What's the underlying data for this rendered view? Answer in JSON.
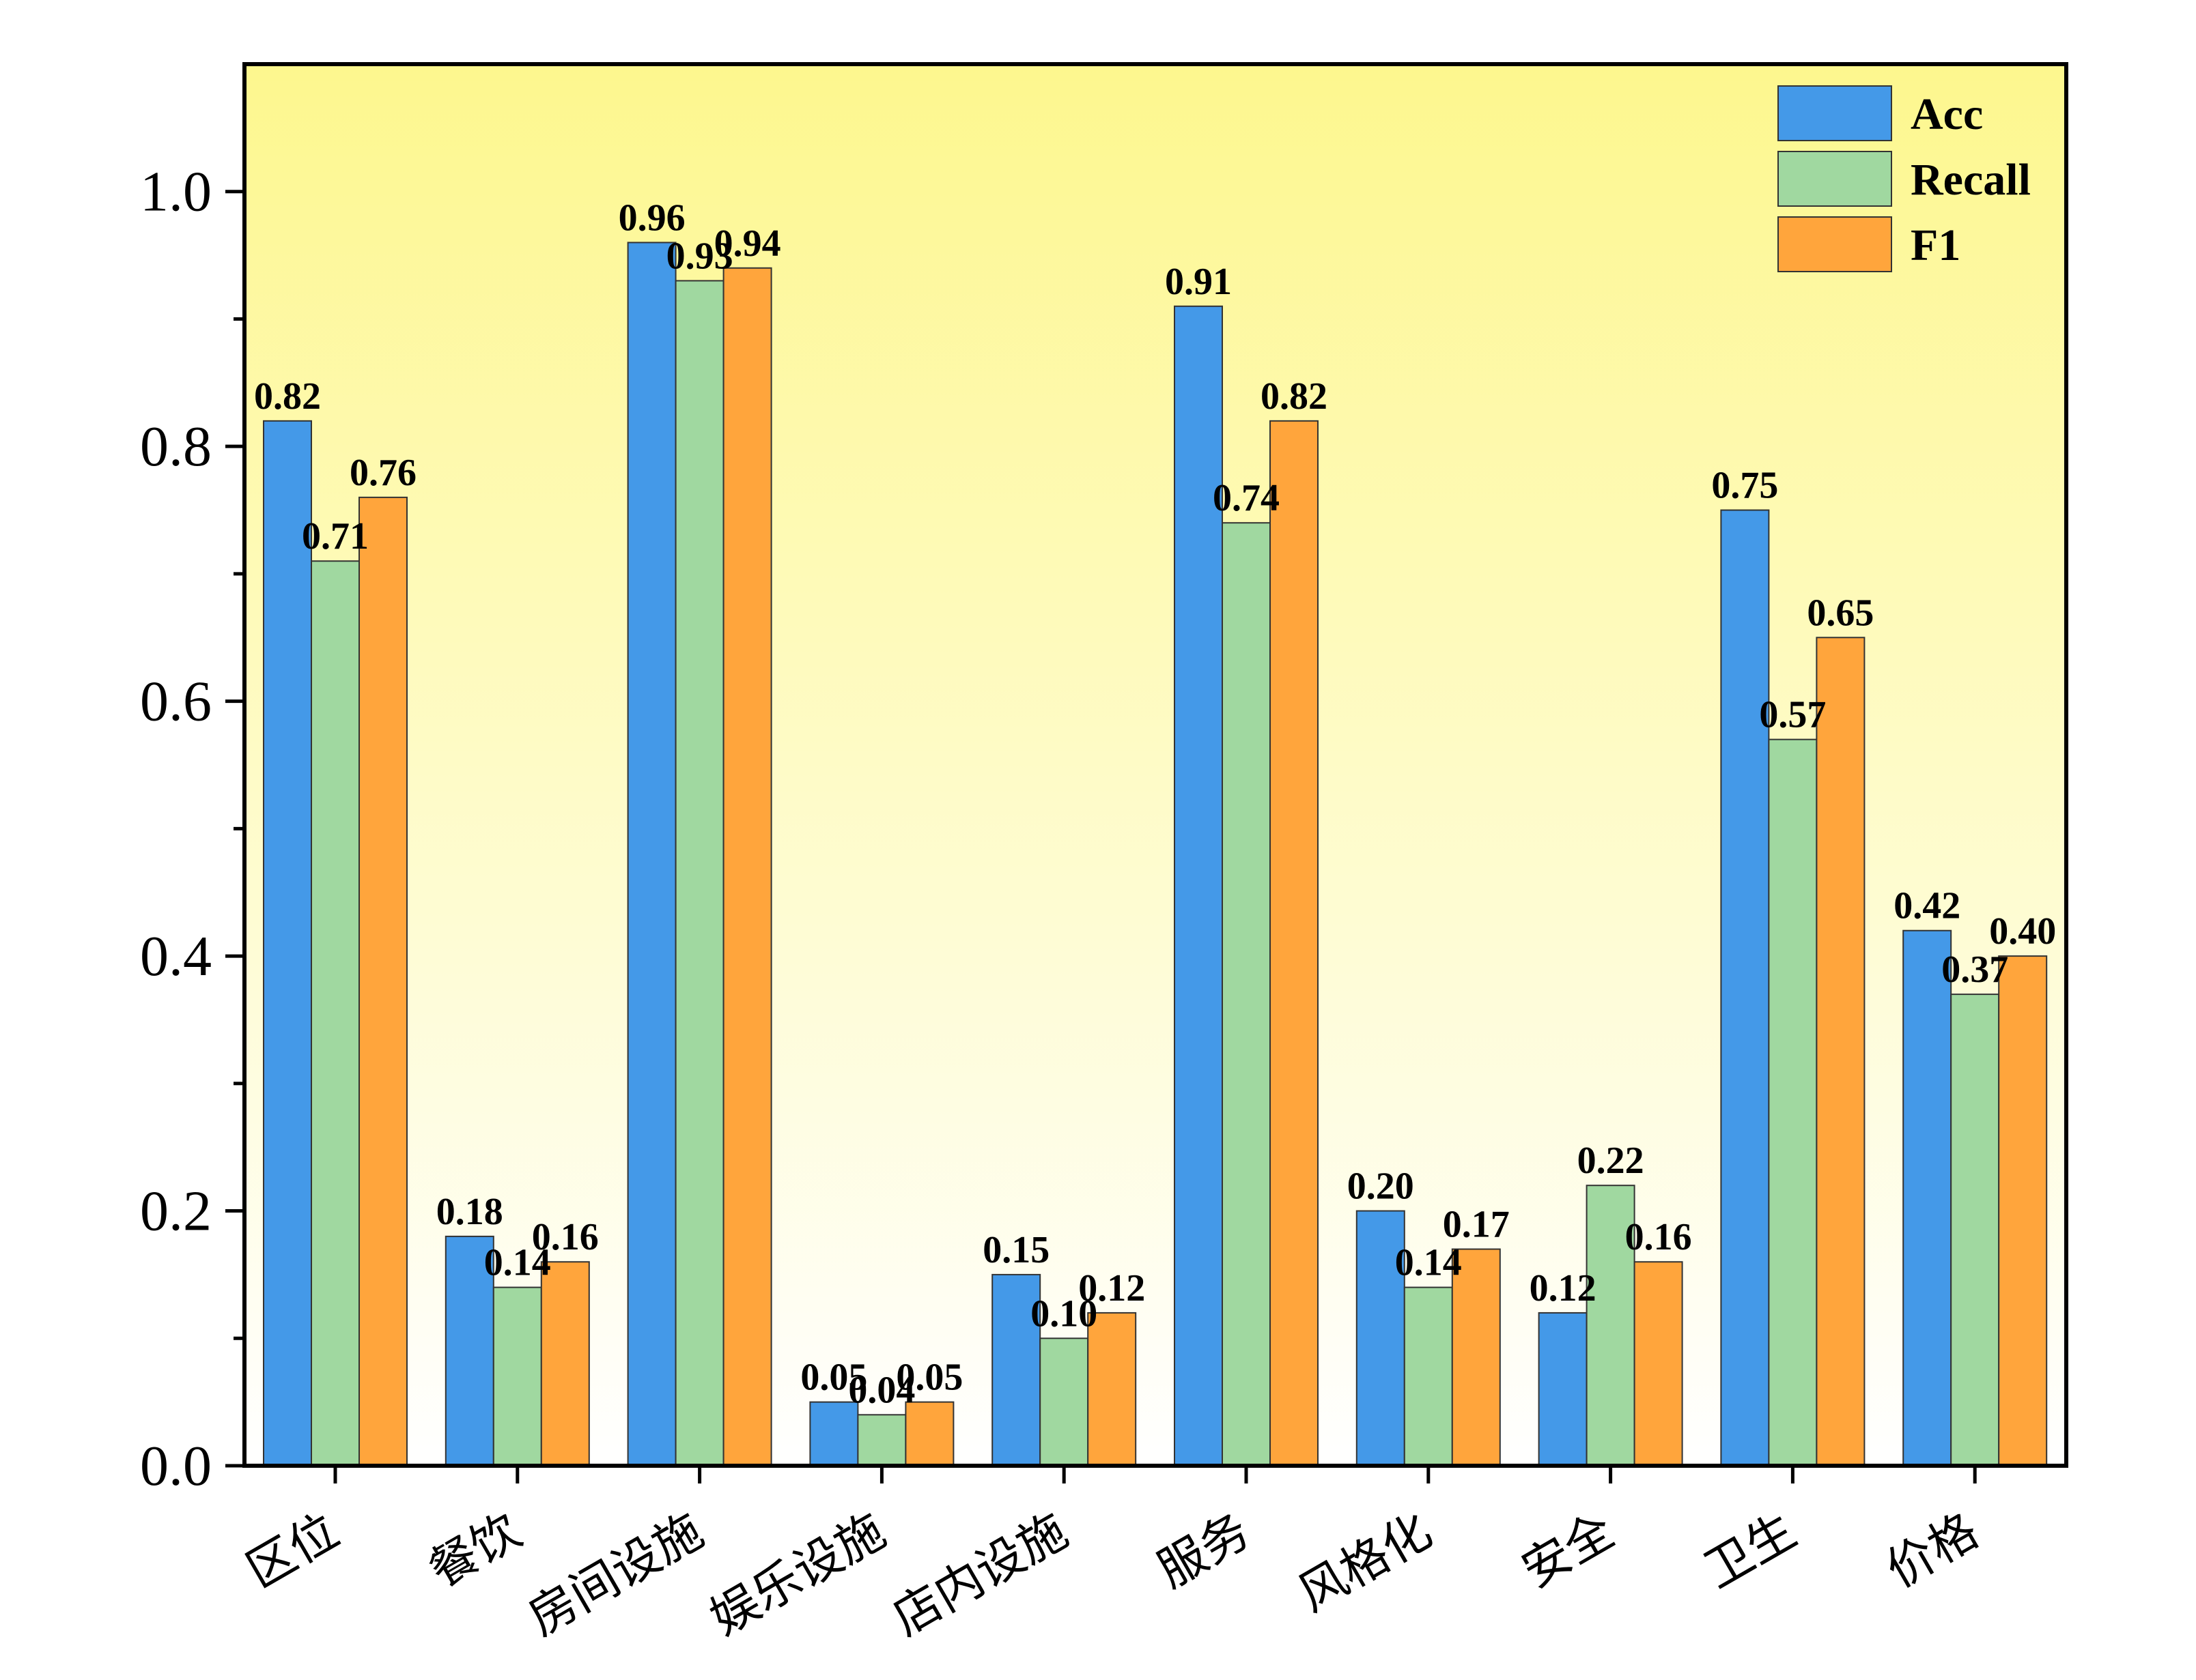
{
  "chart_data": {
    "type": "bar",
    "categories": [
      "区位",
      "餐饮",
      "房间设施",
      "娱乐设施",
      "店内设施",
      "服务",
      "风格化",
      "安全",
      "卫生",
      "价格"
    ],
    "series": [
      {
        "name": "Acc",
        "color": "#4499e8",
        "values": [
          0.82,
          0.18,
          0.96,
          0.05,
          0.15,
          0.91,
          0.2,
          0.12,
          0.75,
          0.42
        ]
      },
      {
        "name": "Recall",
        "color": "#a0d8a0",
        "values": [
          0.71,
          0.14,
          0.93,
          0.04,
          0.1,
          0.74,
          0.14,
          0.22,
          0.57,
          0.37
        ]
      },
      {
        "name": "F1",
        "color": "#ffa53c",
        "values": [
          0.76,
          0.16,
          0.94,
          0.05,
          0.12,
          0.82,
          0.17,
          0.16,
          0.65,
          0.4
        ]
      }
    ],
    "value_labels": [
      [
        "0.82",
        "0.18",
        "0.96",
        "0.05",
        "0.15",
        "0.91",
        "0.20",
        "0.12",
        "0.75",
        "0.42"
      ],
      [
        "0.71",
        "0.14",
        "0.93",
        "0.04",
        "0.10",
        "0.74",
        "0.14",
        "0.22",
        "0.57",
        "0.37"
      ],
      [
        "0.76",
        "0.16",
        "0.94",
        "0.05",
        "0.12",
        "0.82",
        "0.17",
        "0.16",
        "0.65",
        "0.40"
      ]
    ],
    "yticks": [
      "0.0",
      "0.2",
      "0.4",
      "0.6",
      "0.8",
      "1.0"
    ],
    "ylim": [
      0,
      1.1
    ],
    "xlabel": "",
    "ylabel": "",
    "legend_position": "top-right",
    "background_gradient": [
      "#fdf78e",
      "#ffffff"
    ]
  }
}
